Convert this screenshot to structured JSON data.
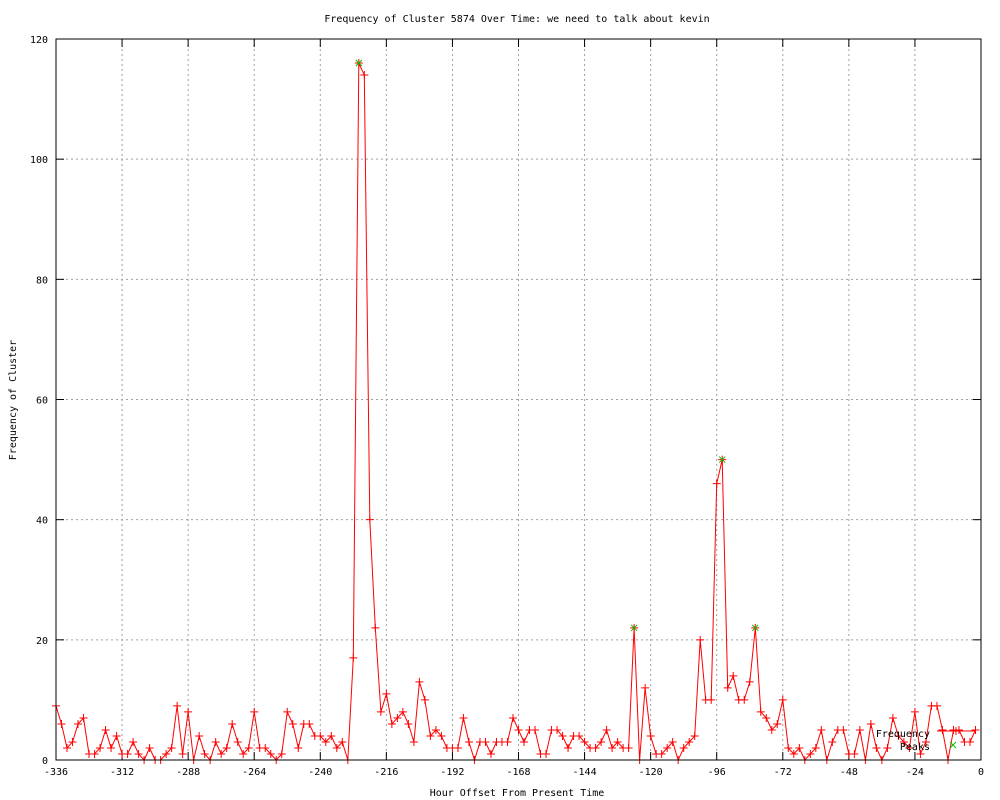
{
  "chart_data": {
    "type": "line",
    "title": "Frequency of Cluster 5874 Over Time: we need to talk about kevin",
    "xlabel": "Hour Offset From Present Time",
    "ylabel": "Frequency of Cluster",
    "xlim": [
      -336,
      0
    ],
    "ylim": [
      0,
      120
    ],
    "xticks": [
      -336,
      -312,
      -288,
      -264,
      -240,
      -216,
      -192,
      -168,
      -144,
      -120,
      -96,
      -72,
      -48,
      -24,
      0
    ],
    "yticks": [
      0,
      20,
      40,
      60,
      80,
      100,
      120
    ],
    "grid": true,
    "legend_placement": "bottom-right",
    "series": [
      {
        "name": "Frequency",
        "style": "linespoints-plus",
        "color": "#ff0000",
        "x": [
          -336,
          -334,
          -332,
          -330,
          -328,
          -326,
          -324,
          -322,
          -320,
          -318,
          -316,
          -314,
          -312,
          -310,
          -308,
          -306,
          -304,
          -302,
          -300,
          -298,
          -296,
          -294,
          -292,
          -290,
          -288,
          -286,
          -284,
          -282,
          -280,
          -278,
          -276,
          -274,
          -272,
          -270,
          -268,
          -266,
          -264,
          -262,
          -260,
          -258,
          -256,
          -254,
          -252,
          -250,
          -248,
          -246,
          -244,
          -242,
          -240,
          -238,
          -236,
          -234,
          -232,
          -230,
          -228,
          -226,
          -224,
          -222,
          -220,
          -218,
          -216,
          -214,
          -212,
          -210,
          -208,
          -206,
          -204,
          -202,
          -200,
          -198,
          -196,
          -194,
          -192,
          -190,
          -188,
          -186,
          -184,
          -182,
          -180,
          -178,
          -176,
          -174,
          -172,
          -170,
          -168,
          -166,
          -164,
          -162,
          -160,
          -158,
          -156,
          -154,
          -152,
          -150,
          -148,
          -146,
          -144,
          -142,
          -140,
          -138,
          -136,
          -134,
          -132,
          -130,
          -128,
          -126,
          -124,
          -122,
          -120,
          -118,
          -116,
          -114,
          -112,
          -110,
          -108,
          -106,
          -104,
          -102,
          -100,
          -98,
          -96,
          -94,
          -92,
          -90,
          -88,
          -86,
          -84,
          -82,
          -80,
          -78,
          -76,
          -74,
          -72,
          -70,
          -68,
          -66,
          -64,
          -62,
          -60,
          -58,
          -56,
          -54,
          -52,
          -50,
          -48,
          -46,
          -44,
          -42,
          -40,
          -38,
          -36,
          -34,
          -32,
          -30,
          -28,
          -26,
          -24,
          -22,
          -20,
          -18,
          -16,
          -14,
          -12,
          -10,
          -8,
          -6,
          -4,
          -2
        ],
        "y": [
          9,
          6,
          2,
          3,
          6,
          7,
          1,
          1,
          2,
          5,
          2,
          4,
          1,
          1,
          3,
          1,
          0,
          2,
          0,
          0,
          1,
          2,
          9,
          1,
          8,
          0,
          4,
          1,
          0,
          3,
          1,
          2,
          6,
          3,
          1,
          2,
          8,
          2,
          2,
          1,
          0,
          1,
          8,
          6,
          2,
          6,
          6,
          4,
          4,
          3,
          4,
          2,
          3,
          0,
          17,
          116,
          114,
          40,
          22,
          8,
          11,
          6,
          7,
          8,
          6,
          3,
          13,
          10,
          4,
          5,
          4,
          2,
          2,
          2,
          7,
          3,
          0,
          3,
          3,
          1,
          3,
          3,
          3,
          7,
          5,
          3,
          5,
          5,
          1,
          1,
          5,
          5,
          4,
          2,
          4,
          4,
          3,
          2,
          2,
          3,
          5,
          2,
          3,
          2,
          2,
          22,
          0,
          12,
          4,
          1,
          1,
          2,
          3,
          0,
          2,
          3,
          4,
          20,
          10,
          10,
          46,
          50,
          12,
          14,
          10,
          10,
          13,
          22,
          8,
          7,
          5,
          6,
          10,
          2,
          1,
          2,
          0,
          1,
          2,
          5,
          0,
          3,
          5,
          5,
          1,
          1,
          5,
          0,
          6,
          2,
          0,
          2,
          7,
          4,
          3,
          2,
          8,
          1,
          3,
          9,
          9,
          5,
          0,
          5,
          5,
          3,
          3,
          5
        ]
      },
      {
        "name": "Peaks",
        "style": "points-x",
        "color": "#00c000",
        "x": [
          -226,
          -126,
          -94,
          -82
        ],
        "y": [
          116,
          22,
          50,
          22
        ]
      }
    ]
  }
}
